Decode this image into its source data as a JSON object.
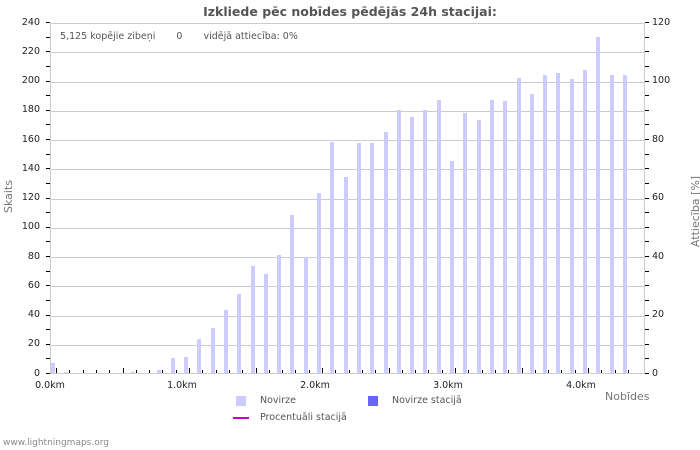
{
  "chart_data": {
    "type": "bar",
    "title": "Izkliede pēc nobīdes pēdējās 24h stacijai:",
    "xlabel": "Nobīdes",
    "ylabel": "Skaits",
    "ylabel_right": "Attiecība [%]",
    "ylim": [
      0,
      240
    ],
    "ylim_right": [
      0,
      120
    ],
    "yticks_left": [
      0,
      20,
      40,
      60,
      80,
      100,
      120,
      140,
      160,
      180,
      200,
      220,
      240
    ],
    "yticks_right": [
      0,
      20,
      40,
      60,
      80,
      100,
      120
    ],
    "xtick_labels": [
      "0.0km",
      "1.0km",
      "2.0km",
      "3.0km",
      "4.0km"
    ],
    "grid": true,
    "legend_position": "bottom",
    "categories": [
      "0.0",
      "0.1",
      "0.2",
      "0.3",
      "0.4",
      "0.5",
      "0.6",
      "0.7",
      "0.8",
      "0.9",
      "1.0",
      "1.1",
      "1.2",
      "1.3",
      "1.4",
      "1.5",
      "1.6",
      "1.7",
      "1.8",
      "1.9",
      "2.0",
      "2.1",
      "2.2",
      "2.3",
      "2.4",
      "2.5",
      "2.6",
      "2.7",
      "2.8",
      "2.9",
      "3.0",
      "3.1",
      "3.2",
      "3.3",
      "3.4",
      "3.5",
      "3.6",
      "3.7",
      "3.8",
      "3.9",
      "4.0",
      "4.1",
      "4.2",
      "4.3"
    ],
    "series": [
      {
        "name": "Novirze",
        "color": "#ccccff",
        "values": [
          7,
          1,
          0,
          0,
          0,
          0,
          1,
          0,
          2,
          10,
          11,
          23,
          31,
          43,
          54,
          73,
          68,
          81,
          108,
          79,
          123,
          158,
          134,
          157,
          157,
          165,
          180,
          175,
          180,
          187,
          145,
          178,
          173,
          187,
          186,
          202,
          191,
          204,
          205,
          201,
          207,
          230,
          204,
          204
        ]
      },
      {
        "name": "Novirze stacijā",
        "color": "#6666ff",
        "values": [
          0,
          0,
          0,
          0,
          0,
          0,
          0,
          0,
          0,
          0,
          0,
          0,
          0,
          0,
          0,
          0,
          0,
          0,
          0,
          0,
          0,
          0,
          0,
          0,
          0,
          0,
          0,
          0,
          0,
          0,
          0,
          0,
          0,
          0,
          0,
          0,
          0,
          0,
          0,
          0,
          0,
          0,
          0,
          0
        ]
      },
      {
        "name": "Procentuāli stacijā",
        "color": "#cc00cc",
        "type": "line",
        "values": [
          0,
          0,
          0,
          0,
          0,
          0,
          0,
          0,
          0,
          0,
          0,
          0,
          0,
          0,
          0,
          0,
          0,
          0,
          0,
          0,
          0,
          0,
          0,
          0,
          0,
          0,
          0,
          0,
          0,
          0,
          0,
          0,
          0,
          0,
          0,
          0,
          0,
          0,
          0,
          0,
          0,
          0,
          0,
          0
        ]
      }
    ],
    "annotations": [
      "5,125 kopējie zibeņi",
      "0",
      "vidējā attiecība: 0%"
    ]
  },
  "header": {
    "title": "Izkliede pēc nobīdes pēdējās 24h stacijai:"
  },
  "stats": {
    "total": "5,125 kopējie zibeņi",
    "station": "0",
    "ratio": "vidējā attiecība: 0%"
  },
  "axes": {
    "left_title": "Skaits",
    "right_title": "Attiecība [%]",
    "x_title": "Nobīdes",
    "left_labels": [
      "240",
      "220",
      "200",
      "180",
      "160",
      "140",
      "120",
      "100",
      "80",
      "60",
      "40",
      "20",
      "0"
    ],
    "right_labels": [
      "120",
      "100",
      "80",
      "60",
      "40",
      "20",
      "0"
    ],
    "x_labels": [
      "0.0km",
      "1.0km",
      "2.0km",
      "3.0km",
      "4.0km"
    ]
  },
  "legend": {
    "items": [
      {
        "label": "Novirze",
        "color": "#ccccff"
      },
      {
        "label": "Novirze stacijā",
        "color": "#6666ff"
      },
      {
        "label": "Procentuāli stacijā",
        "color": "#cc00cc"
      }
    ]
  },
  "footer": {
    "text": "www.lightningmaps.org"
  }
}
